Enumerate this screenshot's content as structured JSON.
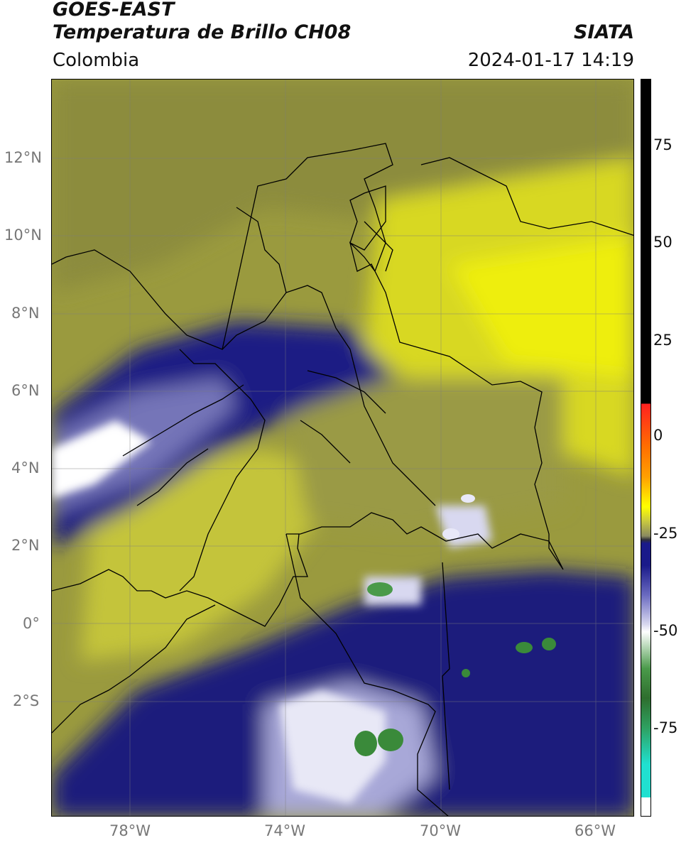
{
  "header": {
    "satellite": "GOES-EAST",
    "product": "Temperatura de Brillo CH08",
    "region": "Colombia",
    "organization": "SIATA",
    "datetime": "2024-01-17 14:19"
  },
  "map": {
    "lat_ticks": [
      "12°N",
      "10°N",
      "8°N",
      "6°N",
      "4°N",
      "2°N",
      "0°",
      "2°S"
    ],
    "lon_ticks": [
      "78°W",
      "74°W",
      "70°W",
      "66°W"
    ],
    "colors": {
      "yellow": "#c8c840",
      "bright_yellow": "#e8e800",
      "olive": "#8a8a3a",
      "navy": "#1c1c80",
      "lavender": "#b8b8e0",
      "white": "#ffffff",
      "green": "#3c8a3c"
    }
  },
  "colorbar": {
    "labels": [
      "75",
      "50",
      "25",
      "0",
      "-25",
      "-50",
      "-75"
    ],
    "colors": [
      "#000000",
      "#ff2020",
      "#ffa000",
      "#ffff00",
      "#30303a",
      "#1a1a8a",
      "#ffffff",
      "#2e8a2e",
      "#20e0d0"
    ]
  }
}
